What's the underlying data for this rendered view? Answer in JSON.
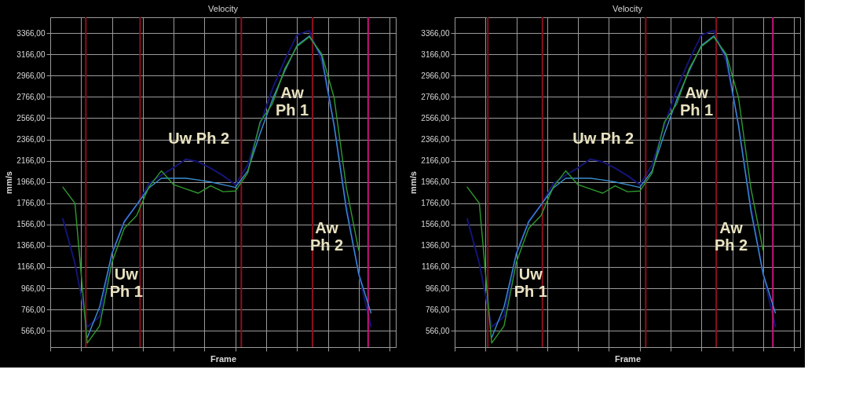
{
  "chart_data": [
    {
      "type": "line",
      "title": "Velocity",
      "xlabel": "Frame",
      "ylabel": "mm/s",
      "categories": [
        null,
        null,
        null,
        null,
        null,
        null,
        null,
        null,
        null,
        null,
        null,
        null,
        null,
        null,
        null,
        null,
        null,
        null,
        null,
        null,
        null,
        null,
        null,
        null,
        null,
        null,
        null,
        null,
        null
      ],
      "ylim": [
        412,
        3515
      ],
      "yticks": [
        {
          "value": 566,
          "label": "566,00"
        },
        {
          "value": 766,
          "label": "766,00"
        },
        {
          "value": 966,
          "label": "966,00"
        },
        {
          "value": 1166,
          "label": "1166,00"
        },
        {
          "value": 1366,
          "label": "1366,00"
        },
        {
          "value": 1566,
          "label": "1566,00"
        },
        {
          "value": 1766,
          "label": "1766,00"
        },
        {
          "value": 1966,
          "label": "1966,00"
        },
        {
          "value": 2166,
          "label": "2166,00"
        },
        {
          "value": 2366,
          "label": "2366,00"
        },
        {
          "value": 2566,
          "label": "2566,00"
        },
        {
          "value": 2766,
          "label": "2766,00"
        },
        {
          "value": 2966,
          "label": "2966,00"
        },
        {
          "value": 3166,
          "label": "3166,00"
        },
        {
          "value": 3366,
          "label": "3366,00"
        }
      ],
      "tick_labels": "y",
      "grid": true,
      "marker": "none",
      "line_style": "solid",
      "series": [
        {
          "color": "#141478",
          "values": [
            null,
            1625,
            1200,
            600,
            700,
            1300,
            1600,
            1750,
            1950,
            2030,
            2100,
            2180,
            2155,
            2095,
            2025,
            1940,
            2125,
            2500,
            2840,
            3110,
            3350,
            3390,
            3100,
            2500,
            1740,
            1100,
            600,
            null,
            null
          ]
        },
        {
          "color": "#3a8fd0",
          "values": [
            null,
            null,
            null,
            500,
            790,
            1290,
            1590,
            1750,
            1910,
            2000,
            2000,
            2000,
            1985,
            1965,
            1940,
            1915,
            2070,
            2420,
            2740,
            3010,
            3250,
            3340,
            3150,
            2500,
            1700,
            1100,
            730,
            null,
            null
          ]
        },
        {
          "color": "#2e9a2e",
          "values": [
            null,
            1920,
            1765,
            450,
            610,
            1210,
            1530,
            1650,
            1920,
            2070,
            1940,
            1900,
            1860,
            1930,
            1874,
            1880,
            2050,
            2530,
            2700,
            3030,
            3240,
            3330,
            3170,
            2760,
            1910,
            1320,
            null,
            null,
            null
          ]
        }
      ],
      "annotations": [
        "Uw\nPh 1",
        "Uw Ph 2",
        "Aw\nPh 1",
        "Aw\nPh 2"
      ]
    },
    {
      "type": "line",
      "title": "Velocity",
      "xlabel": "Frame",
      "ylabel": "mm/s",
      "categories": [
        null,
        null,
        null,
        null,
        null,
        null,
        null,
        null,
        null,
        null,
        null,
        null,
        null,
        null,
        null,
        null,
        null,
        null,
        null,
        null,
        null,
        null,
        null,
        null,
        null,
        null,
        null,
        null,
        null
      ],
      "ylim": [
        412,
        3515
      ],
      "yticks": [
        {
          "value": 566,
          "label": "566,00"
        },
        {
          "value": 766,
          "label": "766,00"
        },
        {
          "value": 966,
          "label": "966,00"
        },
        {
          "value": 1166,
          "label": "1166,00"
        },
        {
          "value": 1366,
          "label": "1366,00"
        },
        {
          "value": 1566,
          "label": "1566,00"
        },
        {
          "value": 1766,
          "label": "1766,00"
        },
        {
          "value": 1966,
          "label": "1966,00"
        },
        {
          "value": 2166,
          "label": "2166,00"
        },
        {
          "value": 2366,
          "label": "2366,00"
        },
        {
          "value": 2566,
          "label": "2566,00"
        },
        {
          "value": 2766,
          "label": "2766,00"
        },
        {
          "value": 2966,
          "label": "2966,00"
        },
        {
          "value": 3166,
          "label": "3166,00"
        },
        {
          "value": 3366,
          "label": "3366,00"
        }
      ],
      "tick_labels": "y",
      "grid": true,
      "marker": "none",
      "line_style": "solid",
      "series": [
        {
          "color": "#141478",
          "values": [
            null,
            1625,
            1200,
            600,
            700,
            1300,
            1600,
            1750,
            1950,
            2030,
            2100,
            2180,
            2155,
            2095,
            2025,
            1940,
            2125,
            2500,
            2840,
            3110,
            3350,
            3390,
            3100,
            2500,
            1740,
            1100,
            600,
            null,
            null
          ]
        },
        {
          "color": "#3a8fd0",
          "values": [
            null,
            null,
            null,
            500,
            790,
            1290,
            1590,
            1750,
            1910,
            2000,
            2000,
            2000,
            1985,
            1965,
            1940,
            1915,
            2070,
            2420,
            2740,
            3010,
            3250,
            3340,
            3150,
            2500,
            1700,
            1100,
            730,
            null,
            null
          ]
        },
        {
          "color": "#2e9a2e",
          "values": [
            null,
            1920,
            1765,
            450,
            610,
            1210,
            1530,
            1650,
            1920,
            2070,
            1940,
            1900,
            1860,
            1930,
            1874,
            1880,
            2050,
            2530,
            2700,
            3030,
            3240,
            3330,
            3170,
            2760,
            1910,
            1320,
            null,
            null,
            null
          ]
        }
      ],
      "annotations": [
        "Uw\nPh 1",
        "Uw Ph 2",
        "Aw\nPh 1",
        "Aw\nPh 2"
      ]
    }
  ]
}
